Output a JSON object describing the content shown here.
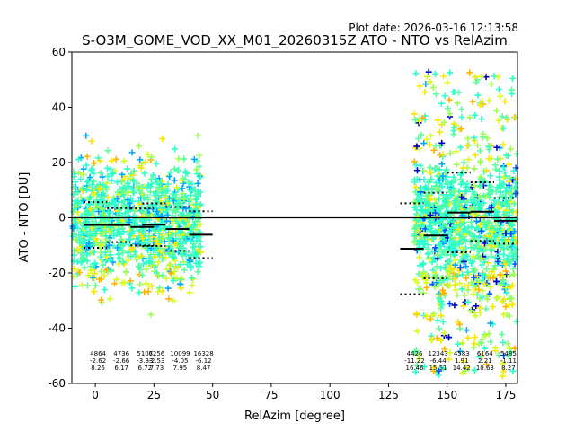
{
  "chart_data": {
    "type": "scatter",
    "plot_date": "Plot date: 2026-03-16 12:13:58",
    "title": "S-O3M_GOME_VOD_XX_M01_20260315Z ATO - NTO vs RelAzim",
    "xlabel": "RelAzim [degree]",
    "ylabel": "ATO - NTO [DU]",
    "xlim": [
      -10,
      180
    ],
    "ylim": [
      -60,
      60
    ],
    "xticks": [
      0,
      25,
      50,
      75,
      100,
      125,
      150,
      175
    ],
    "yticks": [
      -60,
      -40,
      -20,
      0,
      20,
      40,
      60
    ],
    "zero_line": 0,
    "point_cloud": {
      "description_ranges": [
        {
          "x_range": [
            -10,
            45
          ],
          "y_center": -2,
          "y_spread": 26
        },
        {
          "x_range": [
            136,
            180
          ],
          "y_center": -2,
          "y_spread": 30
        }
      ],
      "colors": [
        "#2fffc8",
        "#5cff9c",
        "#a0ff56",
        "#d4ff24",
        "#f8e800",
        "#ffb400",
        "#00a8ff",
        "#0050ff",
        "#0000cc"
      ]
    },
    "bins": [
      {
        "x": 0,
        "mean": -2.62,
        "std": 8.26,
        "count": "4864"
      },
      {
        "x": 10,
        "mean": -2.66,
        "std": 6.17,
        "count": "4736"
      },
      {
        "x": 20,
        "mean": -3.33,
        "std": 6.72,
        "count": "5107"
      },
      {
        "x": 25,
        "mean": -2.53,
        "std": 7.73,
        "count": "6256"
      },
      {
        "x": 35,
        "mean": -4.05,
        "std": 7.95,
        "count": "10099"
      },
      {
        "x": 45,
        "mean": -6.12,
        "std": 8.47,
        "count": "16328"
      },
      {
        "x": 135,
        "mean": -11.22,
        "std": 16.46,
        "count": "4426"
      },
      {
        "x": 145,
        "mean": -6.44,
        "std": 15.51,
        "count": "12343"
      },
      {
        "x": 155,
        "mean": 1.91,
        "std": 14.42,
        "count": "4583"
      },
      {
        "x": 165,
        "mean": 2.21,
        "std": 10.63,
        "count": "6164"
      },
      {
        "x": 175,
        "mean": -1.11,
        "std": 8.27,
        "count": "5485"
      }
    ],
    "bin_labels": [
      {
        "count": "4864",
        "mean": "-2.62",
        "std": "8.26"
      },
      {
        "count": "4736",
        "mean": "-2.66",
        "std": "6.17"
      },
      {
        "count": "5107",
        "mean": "-3.33",
        "std": "6.72"
      },
      {
        "count": "6256",
        "mean": "-2.53",
        "std": "7.73"
      },
      {
        "count": "10099",
        "mean": "-4.05",
        "std": "7.95"
      },
      {
        "count": "16328",
        "mean": "-6.12",
        "std": "8.47"
      },
      {
        "count": "4426",
        "mean": "-11.22",
        "std": "16.46"
      },
      {
        "count": "12343",
        "mean": "-6.44",
        "std": "15.51"
      },
      {
        "count": "4583",
        "mean": "1.91",
        "std": "14.42"
      },
      {
        "count": "6164",
        "mean": "2.21",
        "std": "10.63"
      },
      {
        "count": "5485",
        "mean": "-1.11",
        "std": "8.27"
      }
    ]
  }
}
